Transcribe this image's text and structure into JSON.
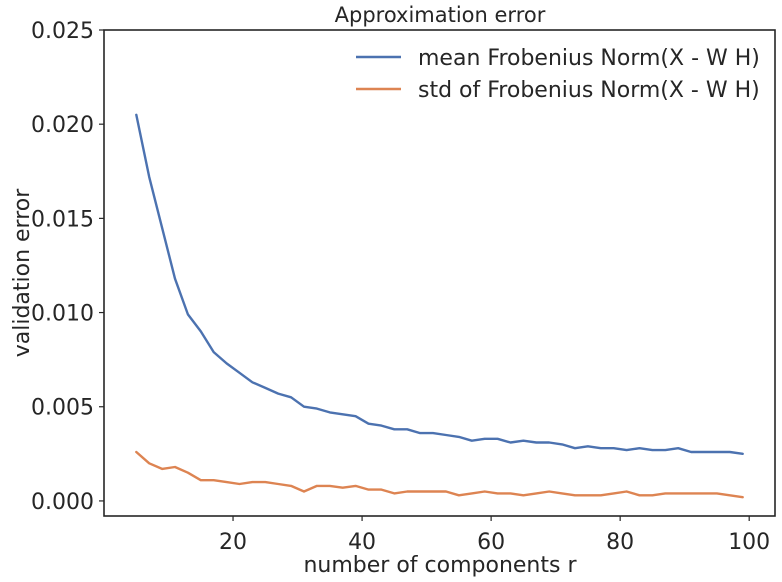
{
  "chart_data": {
    "type": "line",
    "title": "Approximation error",
    "xlabel": "number of components r",
    "ylabel": "validation error",
    "xlim": [
      0,
      104
    ],
    "ylim": [
      -0.0008,
      0.025
    ],
    "xticks": [
      20,
      40,
      60,
      80,
      100
    ],
    "xtick_labels": [
      "20",
      "40",
      "60",
      "80",
      "100"
    ],
    "yticks": [
      0.0,
      0.005,
      0.01,
      0.015,
      0.02,
      0.025
    ],
    "ytick_labels": [
      "0.000",
      "0.005",
      "0.010",
      "0.015",
      "0.020",
      "0.025"
    ],
    "grid": false,
    "legend_position": "top-right",
    "x": [
      5,
      7,
      9,
      11,
      13,
      15,
      17,
      19,
      21,
      23,
      25,
      27,
      29,
      31,
      33,
      35,
      37,
      39,
      41,
      43,
      45,
      47,
      49,
      51,
      53,
      55,
      57,
      59,
      61,
      63,
      65,
      67,
      69,
      71,
      73,
      75,
      77,
      79,
      81,
      83,
      85,
      87,
      89,
      91,
      93,
      95,
      97,
      99
    ],
    "series": [
      {
        "name": "mean Frobenius Norm(X - W H)",
        "color": "#4c72b0",
        "values": [
          0.0205,
          0.0172,
          0.0145,
          0.0118,
          0.0099,
          0.009,
          0.0079,
          0.0073,
          0.0068,
          0.0063,
          0.006,
          0.0057,
          0.0055,
          0.005,
          0.0049,
          0.0047,
          0.0046,
          0.0045,
          0.0041,
          0.004,
          0.0038,
          0.0038,
          0.0036,
          0.0036,
          0.0035,
          0.0034,
          0.0032,
          0.0033,
          0.0033,
          0.0031,
          0.0032,
          0.0031,
          0.0031,
          0.003,
          0.0028,
          0.0029,
          0.0028,
          0.0028,
          0.0027,
          0.0028,
          0.0027,
          0.0027,
          0.0028,
          0.0026,
          0.0026,
          0.0026,
          0.0026,
          0.0025
        ]
      },
      {
        "name": "std of Frobenius Norm(X - W H)",
        "color": "#dd8452",
        "values": [
          0.0026,
          0.002,
          0.0017,
          0.0018,
          0.0015,
          0.0011,
          0.0011,
          0.001,
          0.0009,
          0.001,
          0.001,
          0.0009,
          0.0008,
          0.0005,
          0.0008,
          0.0008,
          0.0007,
          0.0008,
          0.0006,
          0.0006,
          0.0004,
          0.0005,
          0.0005,
          0.0005,
          0.0005,
          0.0003,
          0.0004,
          0.0005,
          0.0004,
          0.0004,
          0.0003,
          0.0004,
          0.0005,
          0.0004,
          0.0003,
          0.0003,
          0.0003,
          0.0004,
          0.0005,
          0.0003,
          0.0003,
          0.0004,
          0.0004,
          0.0004,
          0.0004,
          0.0004,
          0.0003,
          0.0002
        ]
      }
    ]
  }
}
